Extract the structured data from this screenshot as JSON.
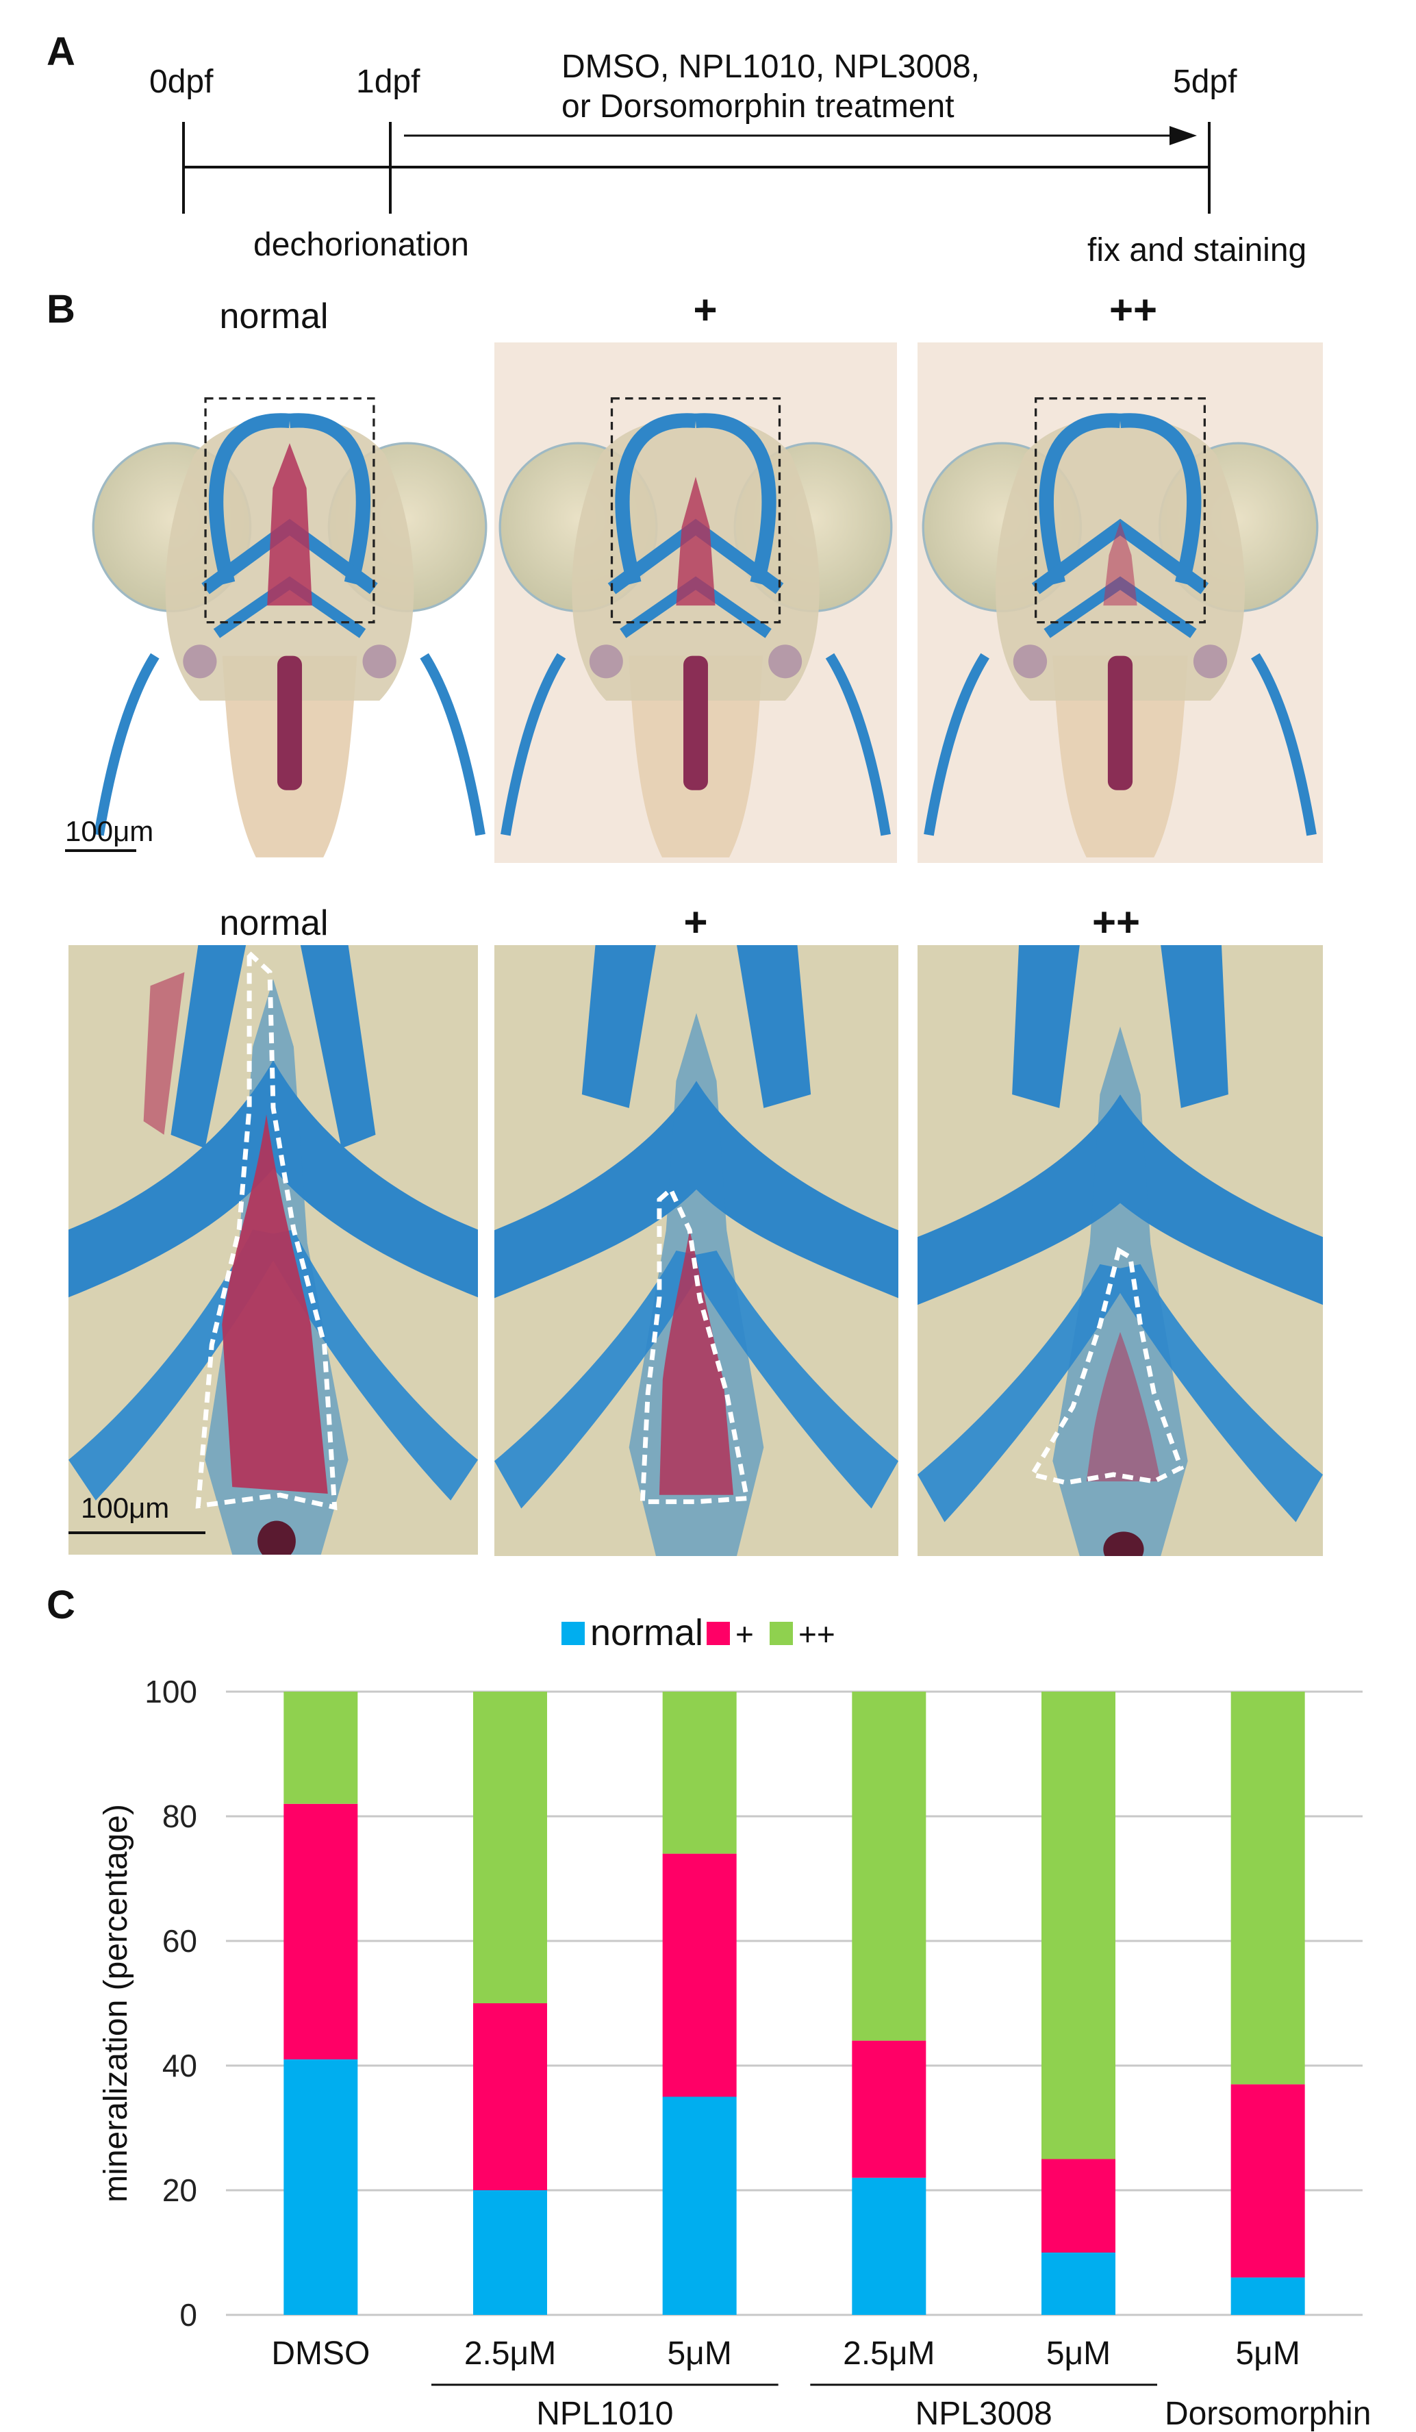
{
  "panel_a": {
    "letter": "A",
    "ticks": [
      "0dpf",
      "1dpf",
      "5dpf"
    ],
    "treatment_line1": "DMSO, NPL1010, NPL3008,",
    "treatment_line2": "or Dorsomorphin treatment",
    "below_left": "dechorionation",
    "below_right": "fix and staining"
  },
  "panel_b": {
    "letter": "B",
    "top_labels": [
      "normal",
      "+",
      "++"
    ],
    "bottom_labels": [
      "normal",
      "+",
      "++"
    ],
    "scale_top": "100μm",
    "scale_bottom": "100μm"
  },
  "panel_c": {
    "letter": "C"
  },
  "colors": {
    "normal": "#00aeef",
    "plus": "#ff0066",
    "plusplus": "#8fd14f",
    "grid": "#c8c8c8",
    "cartilage": "#2f86c8",
    "tissue": "#dcd5b8",
    "bone": "#b2345a"
  },
  "chart_data": {
    "type": "bar",
    "stacked": true,
    "ylabel": "mineralization (percentage)",
    "ylim": [
      0,
      100
    ],
    "yticks": [
      0,
      20,
      40,
      60,
      80,
      100
    ],
    "grid": true,
    "legend_position": "top",
    "categories": [
      "DMSO",
      "2.5μM",
      "5μM",
      "2.5μM",
      "5μM",
      "5μM"
    ],
    "groups": [
      {
        "label": "NPL1010",
        "categories": [
          1,
          2
        ]
      },
      {
        "label": "NPL3008",
        "categories": [
          3,
          4
        ]
      },
      {
        "label": "Dorsomorphin",
        "categories": [
          5
        ]
      }
    ],
    "series": [
      {
        "name": "normal",
        "values": [
          41,
          20,
          35,
          22,
          10,
          6
        ]
      },
      {
        "name": "+",
        "values": [
          41,
          30,
          39,
          22,
          15,
          31
        ]
      },
      {
        "name": "++",
        "values": [
          18,
          50,
          26,
          56,
          75,
          63
        ]
      }
    ]
  }
}
